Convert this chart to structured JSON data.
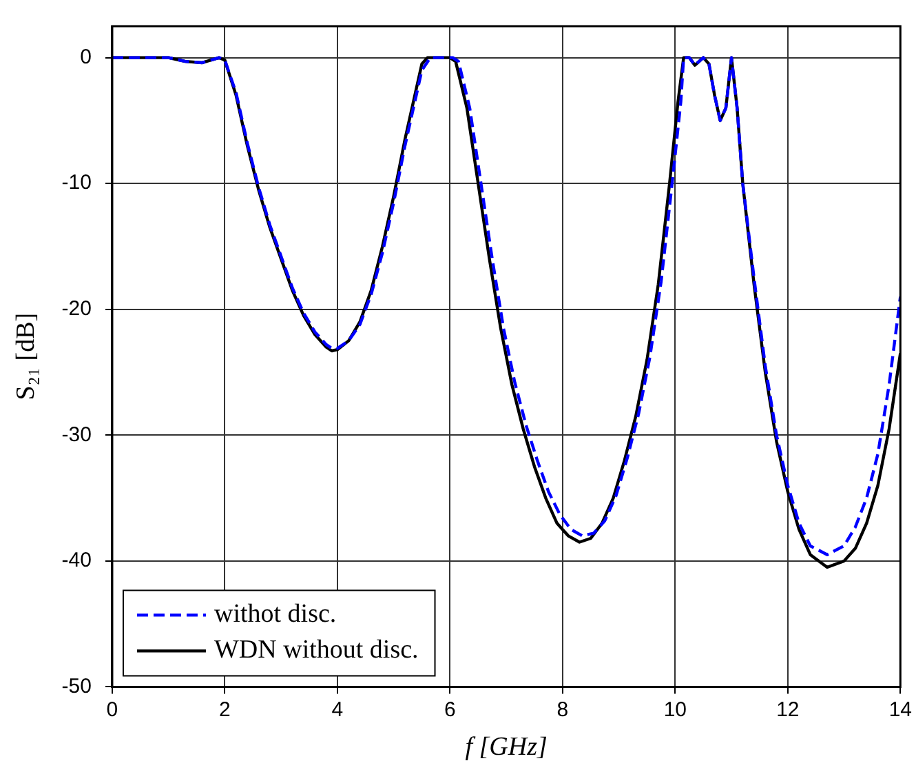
{
  "chart_data": {
    "type": "line",
    "xlabel": "f [GHz]",
    "ylabel": "S₂₁ [dB]",
    "xlim": [
      0,
      14
    ],
    "ylim": [
      -50,
      2.5
    ],
    "xticks": [
      0,
      2,
      4,
      6,
      8,
      10,
      12,
      14
    ],
    "yticks": [
      -50,
      -40,
      -30,
      -20,
      -10,
      0
    ],
    "grid": true,
    "legend": "bottom left",
    "marker": "none",
    "series": [
      {
        "name": "withot disc.",
        "color": "#0000ff",
        "line_style": "dashed",
        "x": [
          0,
          1,
          1.3,
          1.6,
          1.9,
          2.0,
          2.2,
          2.4,
          2.6,
          2.8,
          3.0,
          3.2,
          3.4,
          3.6,
          3.8,
          3.9,
          4.0,
          4.2,
          4.4,
          4.6,
          4.8,
          5.0,
          5.2,
          5.4,
          5.5,
          5.65,
          6.05,
          6.15,
          6.35,
          6.55,
          6.75,
          6.95,
          7.15,
          7.35,
          7.55,
          7.75,
          7.95,
          8.15,
          8.35,
          8.55,
          8.75,
          8.95,
          9.15,
          9.35,
          9.55,
          9.75,
          9.95,
          10.1,
          10.15,
          10.25,
          10.35,
          10.5,
          10.6,
          10.7,
          10.8,
          10.9,
          11.0,
          11.1,
          11.2,
          11.4,
          11.6,
          11.8,
          12.0,
          12.2,
          12.4,
          12.7,
          13.0,
          13.2,
          13.4,
          13.6,
          13.8,
          14.0
        ],
        "values": [
          0,
          0,
          -0.3,
          -0.4,
          0,
          -0.2,
          -2.8,
          -6.8,
          -10.3,
          -13.3,
          -15.8,
          -18.3,
          -20.3,
          -21.8,
          -22.8,
          -23.1,
          -23.1,
          -22.5,
          -21.2,
          -18.8,
          -15.5,
          -11.5,
          -7,
          -3,
          -1,
          0,
          0,
          -0.3,
          -4,
          -10,
          -16,
          -21.5,
          -25.8,
          -29.2,
          -32,
          -34.5,
          -36.3,
          -37.5,
          -38,
          -37.8,
          -36.8,
          -34.8,
          -31.8,
          -28.3,
          -23.8,
          -17.8,
          -9.8,
          -3.5,
          0,
          0,
          -0.6,
          0,
          -0.5,
          -3,
          -5,
          -4,
          0,
          -4,
          -10,
          -17.5,
          -24.5,
          -30,
          -34,
          -37,
          -38.8,
          -39.5,
          -38.8,
          -37.3,
          -35,
          -31.5,
          -26,
          -19
        ]
      },
      {
        "name": "WDN without disc.",
        "color": "#000000",
        "line_style": "solid",
        "x": [
          0,
          1,
          1.3,
          1.6,
          1.9,
          2.0,
          2.2,
          2.4,
          2.6,
          2.8,
          3.0,
          3.2,
          3.4,
          3.6,
          3.8,
          3.9,
          4.0,
          4.2,
          4.4,
          4.6,
          4.8,
          5.0,
          5.2,
          5.4,
          5.5,
          5.6,
          6.0,
          6.1,
          6.3,
          6.5,
          6.7,
          6.9,
          7.1,
          7.3,
          7.5,
          7.7,
          7.9,
          8.1,
          8.3,
          8.5,
          8.7,
          8.9,
          9.1,
          9.3,
          9.5,
          9.7,
          9.9,
          10.05,
          10.15,
          10.25,
          10.35,
          10.5,
          10.6,
          10.7,
          10.8,
          10.9,
          11.0,
          11.1,
          11.2,
          11.4,
          11.6,
          11.8,
          12.0,
          12.2,
          12.4,
          12.7,
          13.0,
          13.2,
          13.4,
          13.6,
          13.8,
          14.0
        ],
        "values": [
          0,
          0,
          -0.3,
          -0.4,
          0,
          -0.2,
          -3,
          -7,
          -10.5,
          -13.5,
          -16,
          -18.5,
          -20.5,
          -22,
          -23,
          -23.3,
          -23.2,
          -22.5,
          -21,
          -18.5,
          -15,
          -11,
          -6.5,
          -2.5,
          -0.5,
          0,
          0,
          -0.3,
          -4,
          -10,
          -16,
          -21.5,
          -26,
          -29.5,
          -32.5,
          -35,
          -37,
          -38,
          -38.5,
          -38.2,
          -37,
          -35,
          -32,
          -28.5,
          -24,
          -18,
          -10,
          -3.5,
          0,
          0,
          -0.6,
          0,
          -0.5,
          -3,
          -5,
          -4,
          0,
          -4,
          -10,
          -18,
          -25,
          -30.5,
          -34.5,
          -37.5,
          -39.5,
          -40.5,
          -40,
          -39,
          -37,
          -34,
          -29.5,
          -23.5
        ]
      }
    ]
  }
}
